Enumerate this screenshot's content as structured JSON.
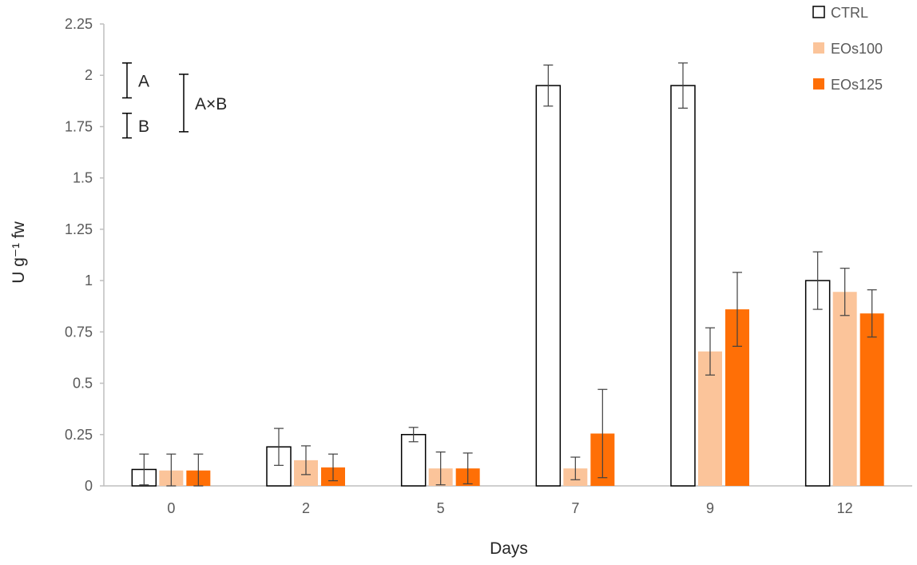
{
  "chart_data": {
    "type": "bar",
    "title": "",
    "xlabel": "Days",
    "ylabel": "U g⁻¹ fw",
    "categories": [
      "0",
      "2",
      "5",
      "7",
      "9",
      "12"
    ],
    "ylim": [
      0,
      2.25
    ],
    "yticks": [
      0,
      0.25,
      0.5,
      0.75,
      1,
      1.25,
      1.5,
      1.75,
      2,
      2.25
    ],
    "ytick_labels": [
      "0",
      "0.25",
      "0.5",
      "0.75",
      "1",
      "1.25",
      "1.5",
      "1.75",
      "2",
      "2.25"
    ],
    "grid": false,
    "legend_position": "top-right",
    "series": [
      {
        "name": "CTRL",
        "color": "#ffffff",
        "stroke": "#000000",
        "values": [
          0.08,
          0.19,
          0.25,
          1.95,
          1.95,
          1.0
        ],
        "errors": [
          0.075,
          0.09,
          0.035,
          0.1,
          0.11,
          0.14
        ]
      },
      {
        "name": "EOs100",
        "color": "#fbc49a",
        "stroke": "none",
        "values": [
          0.075,
          0.125,
          0.085,
          0.085,
          0.655,
          0.945
        ],
        "errors": [
          0.08,
          0.07,
          0.08,
          0.055,
          0.115,
          0.115
        ]
      },
      {
        "name": "EOs125",
        "color": "#ff6f06",
        "stroke": "none",
        "values": [
          0.075,
          0.09,
          0.085,
          0.255,
          0.86,
          0.84
        ],
        "errors": [
          0.08,
          0.065,
          0.075,
          0.215,
          0.18,
          0.115
        ]
      }
    ],
    "significance_bars": [
      {
        "label": "A",
        "low": 1.89,
        "high": 2.06
      },
      {
        "label": "B",
        "low": 1.695,
        "high": 1.815
      },
      {
        "label": "A×B",
        "low": 1.725,
        "high": 2.005
      }
    ]
  }
}
